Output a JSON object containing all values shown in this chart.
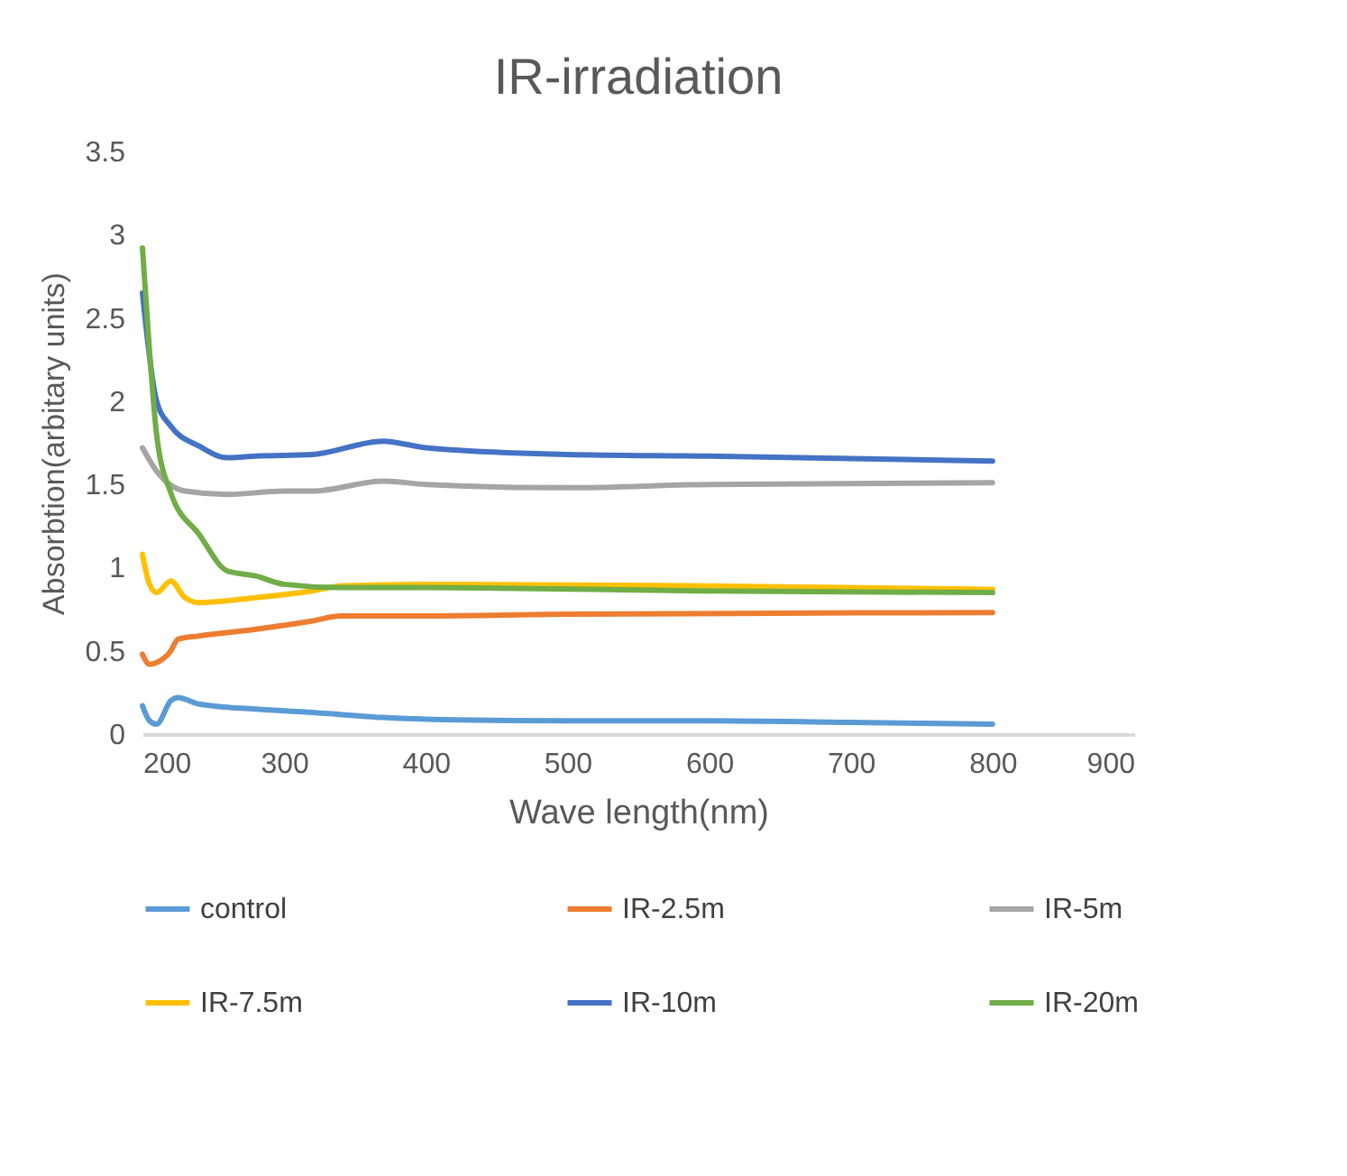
{
  "chart_data": {
    "type": "line",
    "title": "IR-irradiation",
    "xlabel": "Wave length(nm)",
    "ylabel": "Absorbtion(arbitary units)",
    "xlim": [
      200,
      900
    ],
    "xticks": [
      200,
      300,
      400,
      500,
      600,
      700,
      800,
      900
    ],
    "ylim": [
      0,
      3.5
    ],
    "yticks": [
      0,
      0.5,
      1,
      1.5,
      2,
      2.5,
      3,
      3.5
    ],
    "grid": false,
    "legend": "bottom",
    "marker": "none",
    "line_style": "solid",
    "series": [
      {
        "name": "control",
        "color": "#5b9bd5",
        "x": [
          200,
          205,
          210,
          220,
          225,
          240,
          280,
          320,
          370,
          400,
          500,
          600,
          700,
          800
        ],
        "values": [
          0.17,
          0.08,
          0.06,
          0.2,
          0.22,
          0.18,
          0.15,
          0.13,
          0.1,
          0.09,
          0.08,
          0.08,
          0.07,
          0.06
        ]
      },
      {
        "name": "IR-2.5m",
        "color": "#ed7d31",
        "x": [
          200,
          205,
          210,
          220,
          225,
          240,
          280,
          320,
          340,
          400,
          500,
          800
        ],
        "values": [
          0.48,
          0.42,
          0.43,
          0.5,
          0.57,
          0.59,
          0.63,
          0.68,
          0.71,
          0.71,
          0.72,
          0.73
        ]
      },
      {
        "name": "IR-5m",
        "color": "#a5a5a5",
        "x": [
          200,
          210,
          230,
          260,
          300,
          320,
          370,
          400,
          500,
          600,
          800
        ],
        "values": [
          1.72,
          1.58,
          1.46,
          1.44,
          1.46,
          1.46,
          1.52,
          1.5,
          1.48,
          1.5,
          1.51
        ]
      },
      {
        "name": "IR-7.5m",
        "color": "#ffc000",
        "x": [
          200,
          205,
          210,
          220,
          230,
          240,
          280,
          320,
          340,
          400,
          600,
          800
        ],
        "values": [
          1.08,
          0.9,
          0.85,
          0.92,
          0.82,
          0.79,
          0.82,
          0.86,
          0.89,
          0.9,
          0.89,
          0.87
        ]
      },
      {
        "name": "IR-10m",
        "color": "#4472c4",
        "x": [
          200,
          210,
          220,
          240,
          260,
          280,
          320,
          370,
          400,
          500,
          600,
          800
        ],
        "values": [
          2.65,
          2.0,
          1.85,
          1.73,
          1.66,
          1.67,
          1.68,
          1.76,
          1.72,
          1.68,
          1.67,
          1.64
        ]
      },
      {
        "name": "IR-20m",
        "color": "#70ad47",
        "x": [
          200,
          205,
          210,
          220,
          240,
          260,
          280,
          300,
          340,
          400,
          600,
          800
        ],
        "values": [
          2.92,
          2.3,
          1.8,
          1.45,
          1.2,
          0.98,
          0.95,
          0.9,
          0.88,
          0.88,
          0.86,
          0.85
        ]
      }
    ]
  }
}
